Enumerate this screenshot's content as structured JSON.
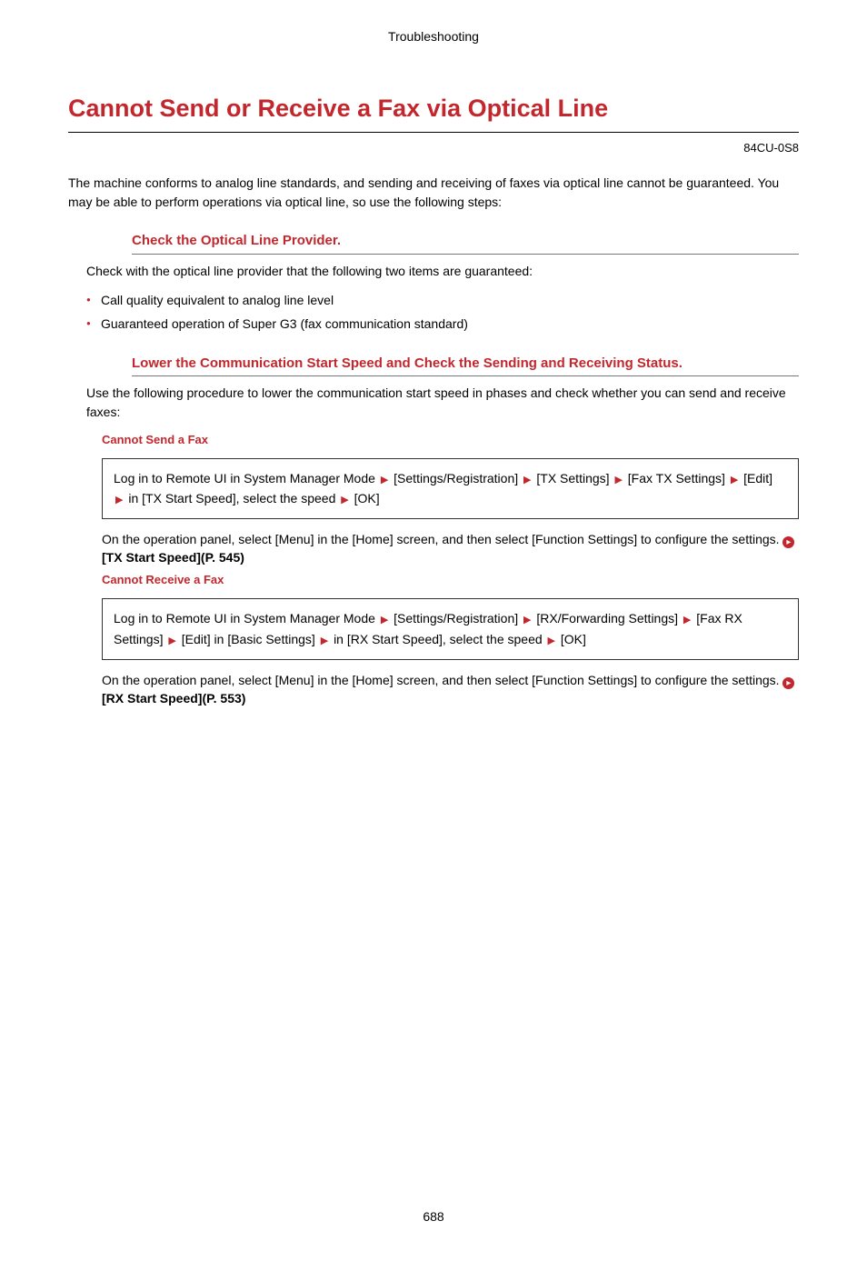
{
  "header": {
    "breadcrumb": "Troubleshooting"
  },
  "title": "Cannot Send or Receive a Fax via Optical Line",
  "doc_id": "84CU-0S8",
  "intro": "The machine conforms to analog line standards, and sending and receiving of faxes via optical line cannot be guaranteed. You may be able to perform operations via optical line, so use the following steps:",
  "section1": {
    "title": "Check the Optical Line Provider.",
    "text": "Check with the optical line provider that the following two items are guaranteed:",
    "bullets": [
      "Call quality equivalent to analog line level",
      "Guaranteed operation of Super G3 (fax communication standard)"
    ]
  },
  "section2": {
    "title": "Lower the Communication Start Speed and Check the Sending and Receiving Status.",
    "text": "Use the following procedure to lower the communication start speed in phases and check whether you can send and receive faxes:",
    "sub1": {
      "heading": "Cannot Send a Fax",
      "steps": {
        "s0": "Log in to Remote UI in System Manager Mode",
        "s1": "[Settings/Registration]",
        "s2": "[TX Settings]",
        "s3": "[Fax TX Settings]",
        "s4": "[Edit]",
        "s5": "in [TX Start Speed], select the speed",
        "s6": "[OK]"
      },
      "note_pre": "On the operation panel, select [Menu] in the [Home] screen, and then select [Function Settings] to configure the settings. ",
      "link": "[TX Start Speed](P. 545)"
    },
    "sub2": {
      "heading": "Cannot Receive a Fax",
      "steps": {
        "s0": "Log in to Remote UI in System Manager Mode",
        "s1": "[Settings/Registration]",
        "s2": "[RX/Forwarding Settings]",
        "s3": "[Fax RX Settings]",
        "s4": "[Edit] in [Basic Settings]",
        "s5": "in [RX Start Speed], select the speed",
        "s6": "[OK]"
      },
      "note_pre": "On the operation panel, select [Menu] in the [Home] screen, and then select [Function Settings] to configure the settings. ",
      "link": "[RX Start Speed](P. 553)"
    }
  },
  "page_number": "688"
}
